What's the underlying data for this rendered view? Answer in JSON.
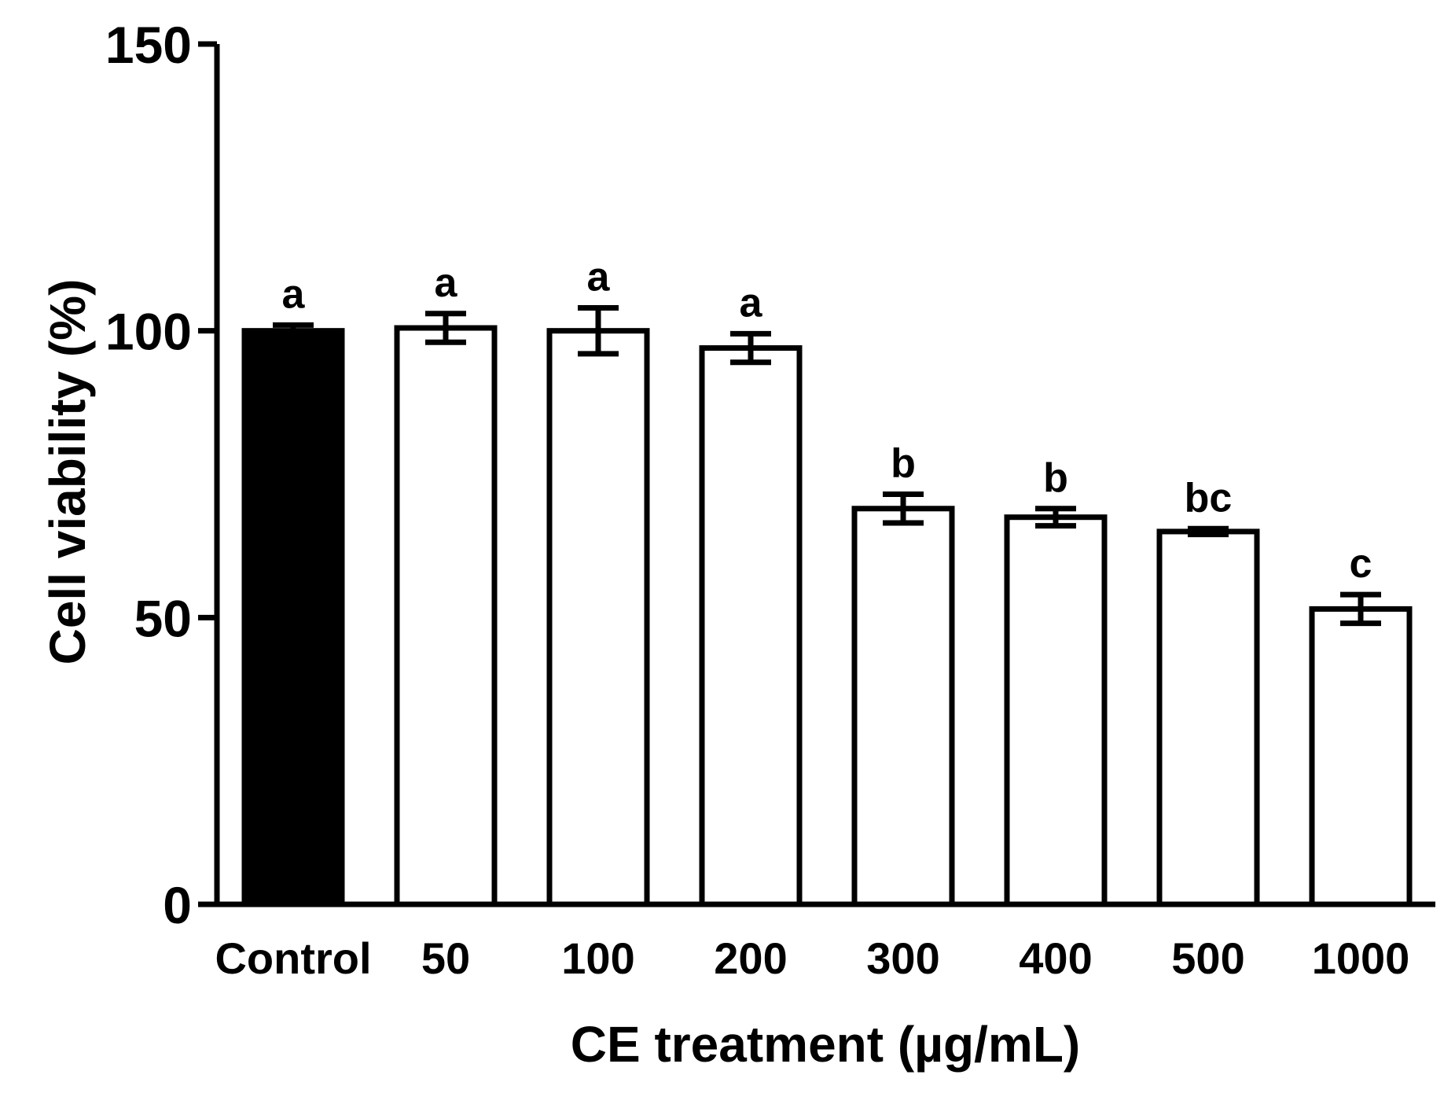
{
  "chart_data": {
    "type": "bar",
    "title": "",
    "xlabel": "CE treatment (µg/mL)",
    "ylabel": "Cell viability (%)",
    "ylim": [
      0,
      150
    ],
    "yticks": [
      0,
      50,
      100,
      150
    ],
    "grid": false,
    "categories": [
      "Control",
      "50",
      "100",
      "200",
      "300",
      "400",
      "500",
      "1000"
    ],
    "values": [
      100,
      100.5,
      100,
      97,
      69,
      67.5,
      65,
      51.5
    ],
    "errors": [
      1,
      2.5,
      4,
      2.5,
      2.5,
      1.5,
      0.5,
      2.5
    ],
    "significance_labels": [
      "a",
      "a",
      "a",
      "a",
      "b",
      "b",
      "bc",
      "c"
    ],
    "series": [
      {
        "name": "Cell viability",
        "values": [
          100,
          100.5,
          100,
          97,
          69,
          67.5,
          65,
          51.5
        ]
      }
    ],
    "colors": {
      "control_fill": "#000000",
      "treatment_fill": "#ffffff",
      "stroke": "#000000"
    }
  }
}
